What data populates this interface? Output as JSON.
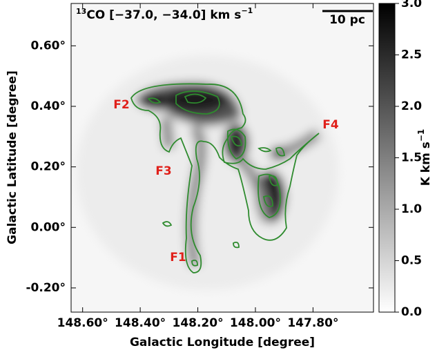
{
  "chart_data": {
    "type": "image",
    "title": {
      "isotope": "13",
      "text": "CO [−37.0, −34.0] km s",
      "unit_exp": "−1"
    },
    "x_label": "Galactic Longitude [degree]",
    "y_label": "Galactic Latitude [degree]",
    "xlim": [
      148.64,
      147.59
    ],
    "ylim": [
      -0.28,
      0.74
    ],
    "xticks": [
      {
        "value": 148.6,
        "label": "148.60°"
      },
      {
        "value": 148.4,
        "label": "148.40°"
      },
      {
        "value": 148.2,
        "label": "148.20°"
      },
      {
        "value": 148.0,
        "label": "148.00°"
      },
      {
        "value": 147.8,
        "label": "147.80°"
      }
    ],
    "yticks": [
      {
        "value": 0.6,
        "label": "0.60°"
      },
      {
        "value": 0.4,
        "label": "0.40°"
      },
      {
        "value": 0.2,
        "label": "0.20°"
      },
      {
        "value": 0.0,
        "label": "0.00°"
      },
      {
        "value": -0.2,
        "label": "-0.20°"
      }
    ],
    "colorbar": {
      "label": "K km s",
      "label_exp": "−1",
      "lim": [
        0,
        3
      ],
      "ticks": [
        {
          "value": 0,
          "label": "0.0"
        },
        0.5,
        {
          "value": 1,
          "label": "1.0"
        },
        1.5,
        {
          "value": 2,
          "label": "2.0"
        },
        2.5,
        {
          "value": 3,
          "label": "3.0"
        }
      ]
    },
    "scale_bar": "10 pc",
    "annotations": [
      "F1",
      "F2",
      "F3",
      "F4"
    ],
    "contour_color": "#2e8b2e",
    "annotation_color": "#e0201a"
  }
}
